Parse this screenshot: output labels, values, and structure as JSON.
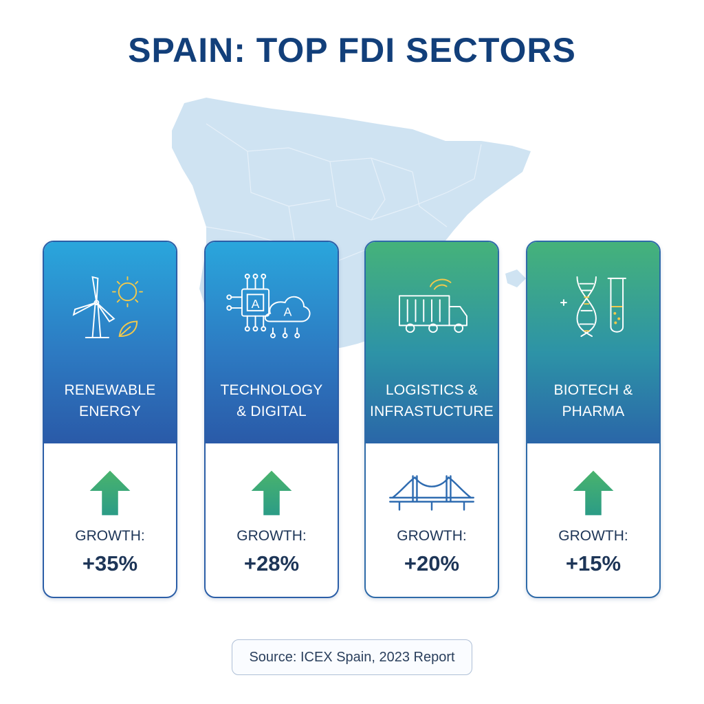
{
  "title": "SPAIN: TOP FDI SECTORS",
  "colors": {
    "title": "#123f7a",
    "map": "#cfe3f2",
    "blue_top": "#2aa6dc",
    "green_top": "#45b27a",
    "arrow_green": "#3aa876",
    "text_dark": "#1d3557"
  },
  "sectors": [
    {
      "name_line1": "RENEWABLE",
      "name_line2": "ENERGY",
      "icon": "wind-turbine-sun-leaf-icon",
      "growth_label": "GROWTH:",
      "growth_value": "+35%",
      "indicator": "up-arrow-icon"
    },
    {
      "name_line1": "TECHNOLOGY",
      "name_line2": "& DIGITAL",
      "icon": "chip-ai-cloud-icon",
      "growth_label": "GROWTH:",
      "growth_value": "+28%",
      "indicator": "up-arrow-icon"
    },
    {
      "name_line1": "LOGISTICS &",
      "name_line2": "INFRASTUCTURE",
      "icon": "delivery-truck-icon",
      "growth_label": "GROWTH:",
      "growth_value": "+20%",
      "indicator": "bridge-icon"
    },
    {
      "name_line1": "BIOTECH &",
      "name_line2": "PHARMA",
      "icon": "dna-test-tube-icon",
      "growth_label": "GROWTH:",
      "growth_value": "+15%",
      "indicator": "up-arrow-icon"
    }
  ],
  "source": "Source: ICEX Spain, 2023 Report"
}
